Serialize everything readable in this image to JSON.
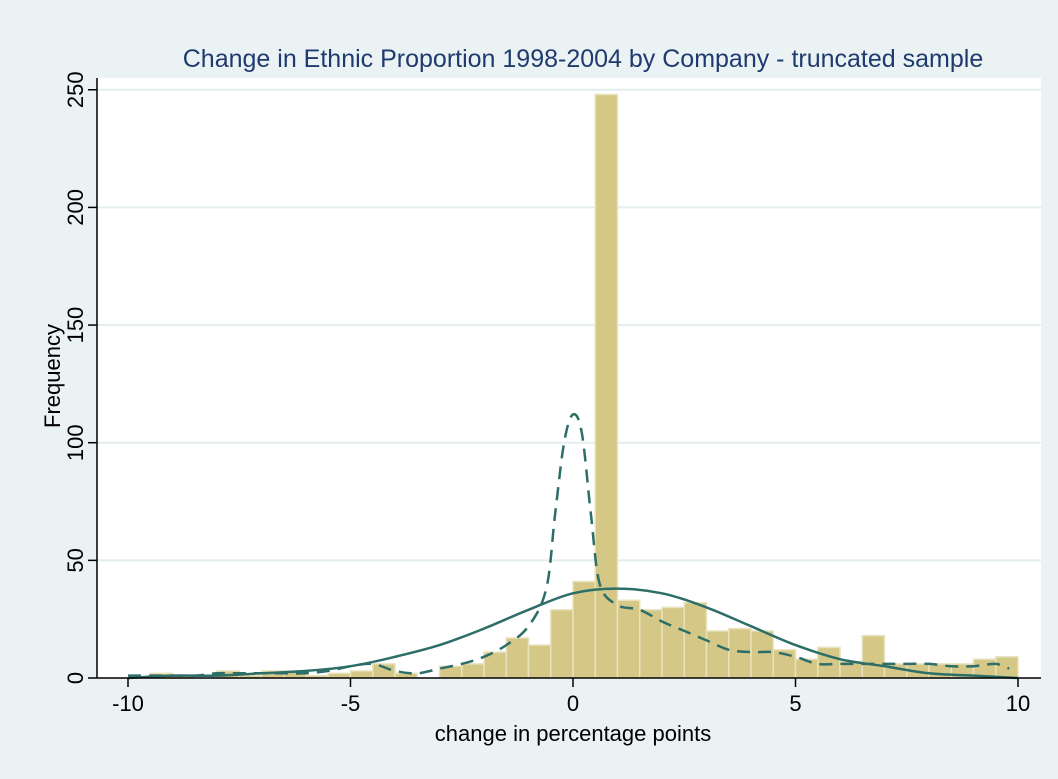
{
  "chart_data": {
    "type": "bar",
    "title": "Change in Ethnic Proportion 1998-2004 by Company - truncated sample",
    "xlabel": "change in percentage points",
    "ylabel": "Frequency",
    "xlim": [
      -10.5,
      10.5
    ],
    "ylim": [
      0,
      255
    ],
    "x_ticks": [
      -10,
      -5,
      0,
      5,
      10
    ],
    "y_ticks": [
      0,
      50,
      100,
      150,
      200,
      250
    ],
    "grid": true,
    "bin_width": 0.5,
    "histogram": {
      "bin_starts": [
        -10,
        -9.5,
        -9,
        -8.5,
        -8,
        -7.5,
        -7,
        -6.5,
        -6,
        -5.5,
        -5,
        -4.5,
        -4,
        -3.5,
        -3,
        -2.5,
        -2,
        -1.5,
        -1,
        -0.5,
        0,
        0.5,
        1,
        1.5,
        2,
        2.5,
        3,
        3.5,
        4,
        4.5,
        5,
        5.5,
        6,
        6.5,
        7,
        7.5,
        8,
        8.5,
        9,
        9.5
      ],
      "values": [
        0,
        2,
        1,
        0,
        3,
        1,
        3,
        3,
        1,
        2,
        3,
        6,
        2,
        0,
        5,
        6,
        11,
        17,
        14,
        29,
        41,
        248,
        33,
        29,
        30,
        32,
        20,
        21,
        20,
        12,
        8,
        13,
        7,
        18,
        6,
        6,
        6,
        6,
        8,
        9
      ]
    },
    "series": [
      {
        "style": "solid",
        "x": [
          -10,
          -9,
          -8,
          -7,
          -6,
          -5,
          -4,
          -3,
          -2,
          -1,
          0,
          1,
          2,
          3,
          4,
          5,
          6,
          7,
          8,
          9,
          10
        ],
        "values": [
          0,
          1,
          1,
          2,
          3,
          5,
          9,
          14,
          21,
          29,
          36,
          38,
          36,
          30,
          22,
          14,
          8,
          5,
          2,
          1,
          0
        ]
      },
      {
        "style": "dashed",
        "x": [
          -10,
          -9.5,
          -9,
          -8.5,
          -8,
          -7.5,
          -7,
          -6.5,
          -6,
          -5.5,
          -5,
          -4.5,
          -4,
          -3.5,
          -3,
          -2.5,
          -2,
          -1.5,
          -1,
          -0.6,
          -0.4,
          -0.2,
          0,
          0.2,
          0.4,
          0.6,
          1,
          1.5,
          2,
          2.5,
          3,
          3.5,
          4,
          4.5,
          5,
          5.5,
          6,
          6.5,
          7,
          7.5,
          8,
          8.5,
          9,
          9.5,
          9.8
        ],
        "values": [
          1,
          1,
          1,
          1,
          2,
          2,
          2,
          2,
          2,
          3,
          5,
          6,
          3,
          2,
          4,
          6,
          9,
          14,
          22,
          38,
          70,
          100,
          112,
          104,
          70,
          40,
          31,
          29,
          24,
          20,
          16,
          12,
          11,
          11,
          9,
          6,
          6,
          6,
          6,
          6,
          6,
          5,
          5,
          6,
          4
        ]
      }
    ],
    "colors": {
      "background": "#eaf2f3",
      "plot_background": "#ffffff",
      "bar_fill": "#d5c887",
      "bar_stroke": "#e8e2bd",
      "line": "#2d6e68",
      "title": "#1f3a6e",
      "axis": "#000000",
      "grid": "#e4eeef"
    }
  }
}
